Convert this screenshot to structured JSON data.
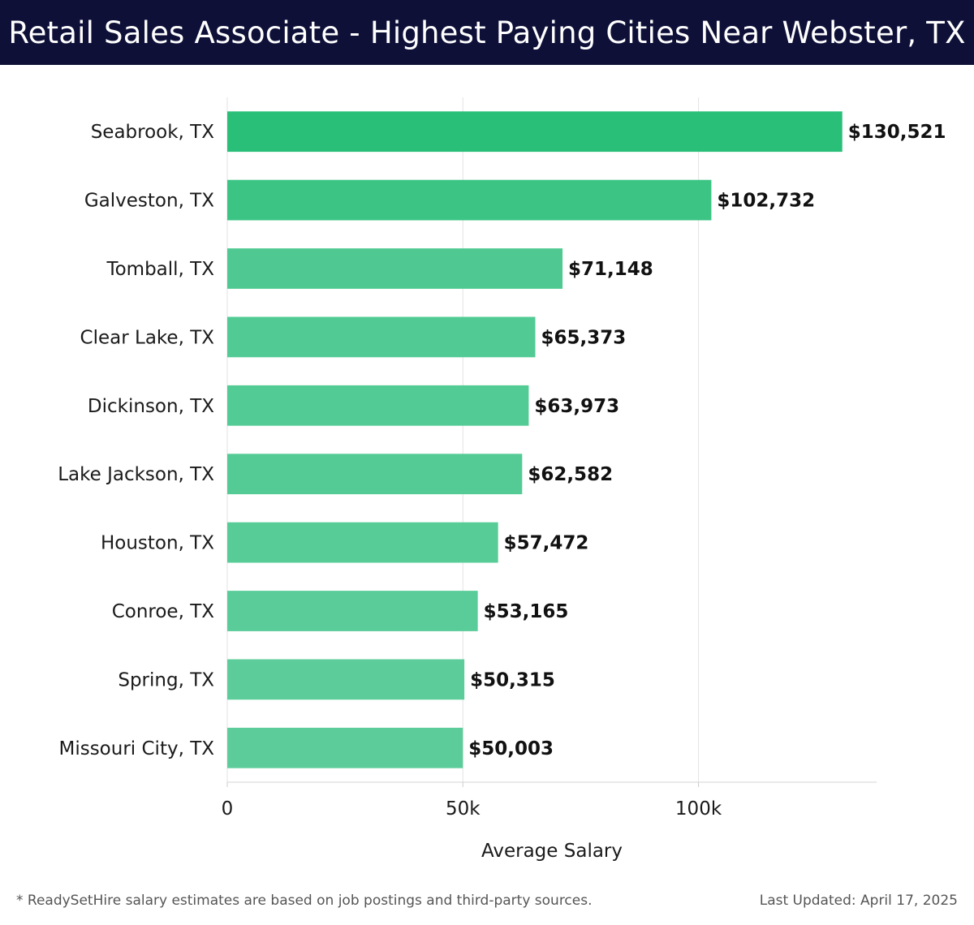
{
  "header": {
    "title": "Retail Sales Associate - Highest Paying Cities Near Webster, TX"
  },
  "chart_data": {
    "type": "bar",
    "orientation": "horizontal",
    "categories": [
      "Seabrook, TX",
      "Galveston, TX",
      "Tomball, TX",
      "Clear Lake, TX",
      "Dickinson, TX",
      "Lake Jackson, TX",
      "Houston, TX",
      "Conroe, TX",
      "Spring, TX",
      "Missouri City, TX"
    ],
    "values": [
      130521,
      102732,
      71148,
      65373,
      63973,
      62582,
      57472,
      53165,
      50315,
      50003
    ],
    "value_labels": [
      "$130,521",
      "$102,732",
      "$71,148",
      "$65,373",
      "$63,973",
      "$62,582",
      "$57,472",
      "$53,165",
      "$50,315",
      "$50,003"
    ],
    "xlabel": "Average Salary",
    "ylabel": "",
    "xlim": [
      0,
      137800
    ],
    "xticks": [
      0,
      50000,
      100000
    ],
    "xtick_labels": [
      "0",
      "50k",
      "100k"
    ],
    "grid": true,
    "colors": {
      "bar_max": "#2abf78",
      "bar_min": "#5ccd9a"
    }
  },
  "footer": {
    "note": "* ReadySetHire salary estimates are based on job postings and third-party sources.",
    "updated": "Last Updated: April 17, 2025"
  }
}
